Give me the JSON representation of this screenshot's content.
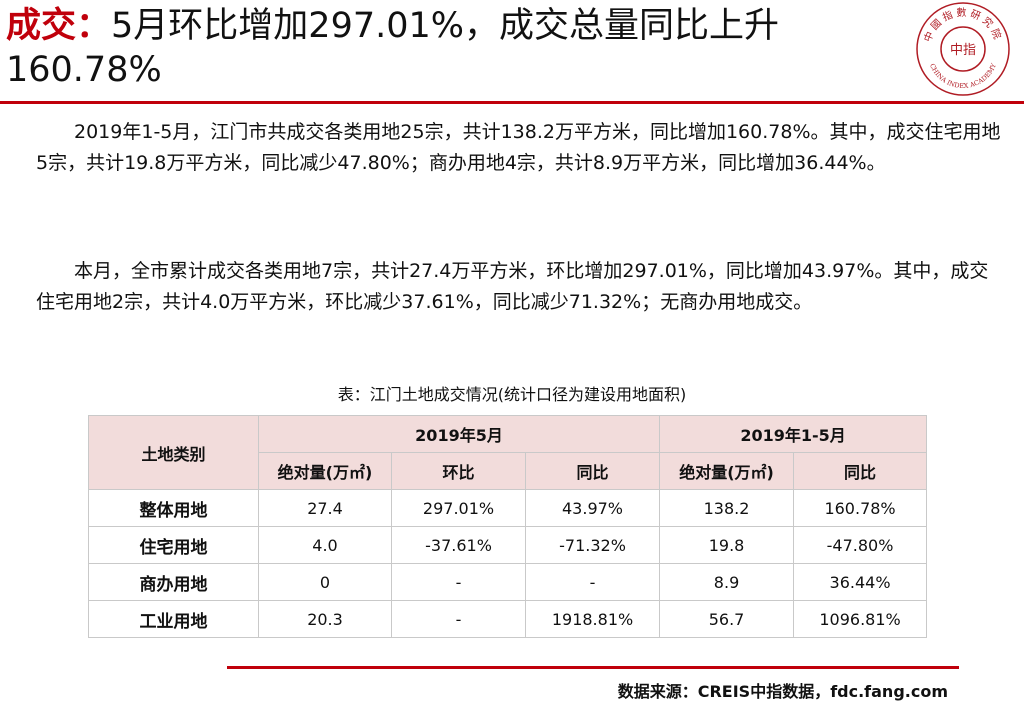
{
  "header": {
    "keyword": "成交",
    "colon": "：",
    "headline_line1": "5月环比增加297.01%，成交总量同比上升",
    "headline_line2": "160.78%"
  },
  "logo": {
    "name": "中指研究院 CHINA INDEX ACADEMY",
    "text_top": "中國指數研究院",
    "text_bottom": "CHINA INDEX ACADEMY",
    "center": "中指",
    "color": "#b01c24"
  },
  "paragraphs": [
    "2019年1-5月，江门市共成交各类用地25宗，共计138.2万平方米，同比增加160.78%。其中，成交住宅用地5宗，共计19.8万平方米，同比减少47.80%；商办用地4宗，共计8.9万平方米，同比增加36.44%。",
    "本月，全市累计成交各类用地7宗，共计27.4万平方米，环比增加297.01%，同比增加43.97%。其中，成交住宅用地2宗，共计4.0万平方米，环比减少37.61%，同比减少71.32%；无商办用地成交。"
  ],
  "table": {
    "caption": "表：江门土地成交情况(统计口径为建设用地面积)",
    "row_header": "土地类别",
    "group1": "2019年5月",
    "group2": "2019年1-5月",
    "sub_headers": [
      "绝对量(万㎡)",
      "环比",
      "同比",
      "绝对量(万㎡)",
      "同比"
    ],
    "rows": [
      {
        "category": "整体用地",
        "cells": [
          "27.4",
          "297.01%",
          "43.97%",
          "138.2",
          "160.78%"
        ]
      },
      {
        "category": "住宅用地",
        "cells": [
          "4.0",
          "-37.61%",
          "-71.32%",
          "19.8",
          "-47.80%"
        ]
      },
      {
        "category": "商办用地",
        "cells": [
          "0",
          "-",
          "-",
          "8.9",
          "36.44%"
        ]
      },
      {
        "category": "工业用地",
        "cells": [
          "20.3",
          "-",
          "1918.81%",
          "56.7",
          "1096.81%"
        ]
      }
    ]
  },
  "footer": {
    "source": "数据来源：CREIS中指数据，fdc.fang.com"
  },
  "colors": {
    "accent": "#c0000b",
    "table_header_bg": "#f2dcdb"
  }
}
